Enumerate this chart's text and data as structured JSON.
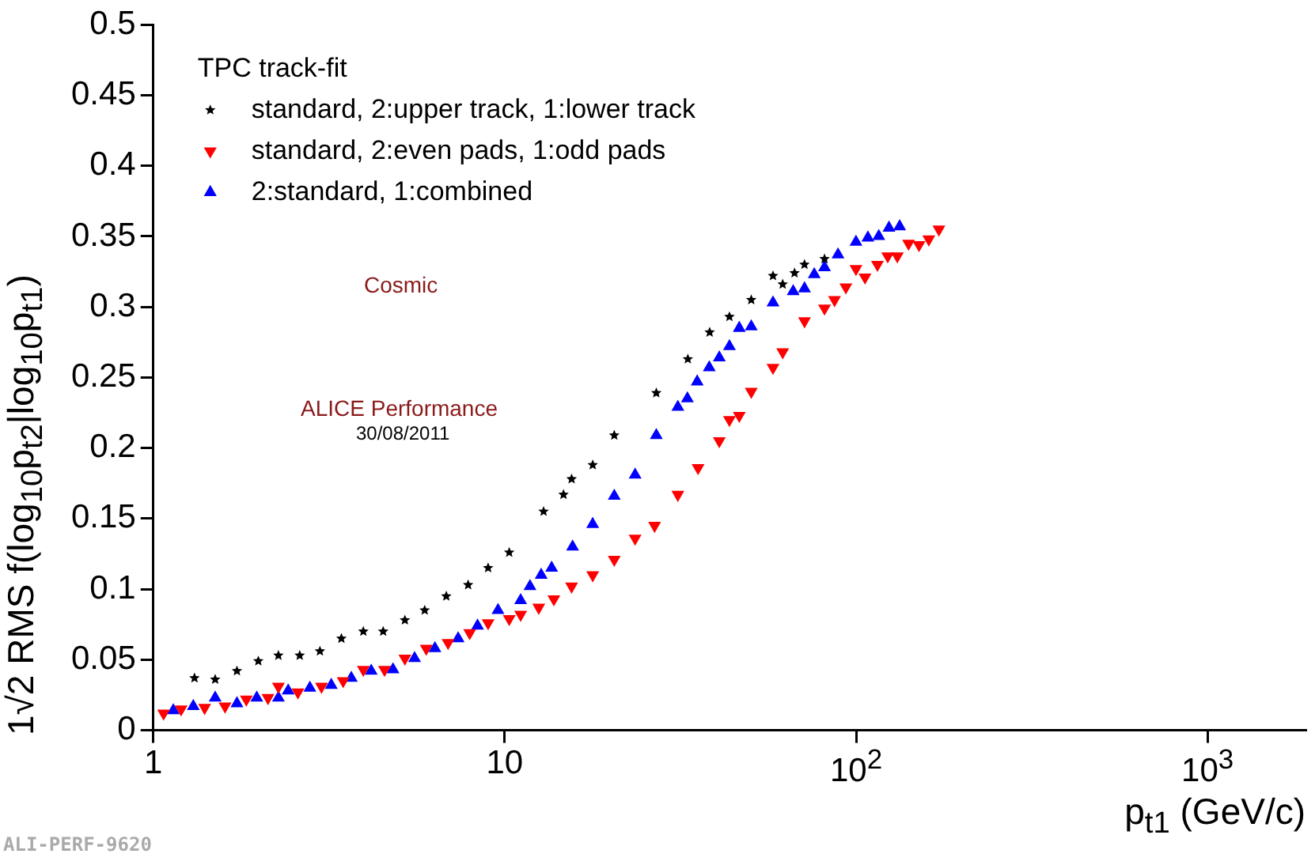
{
  "chart_data": {
    "type": "scatter",
    "xlabel": "p$_{t1}$ (GeV/c)",
    "ylabel": "1√2 RMS f(log$_{10}$p$_{t2}$|log$_{10}$p$_{t1}$)",
    "legend_title": "TPC track-fit",
    "legend": "top left",
    "log": "x",
    "grid": false,
    "xlim": [
      1,
      1900
    ],
    "xticks": [
      1,
      10,
      {
        "value": 100,
        "label": "10$^{2}$"
      },
      {
        "value": 1000,
        "label": "10$^{3}$"
      }
    ],
    "ylim": [
      0,
      0.5
    ],
    "yticks": [
      0,
      0.05,
      0.1,
      0.15,
      0.2,
      0.25,
      0.3,
      0.35,
      0.4,
      0.45,
      0.5
    ],
    "annotations": [
      "Cosmic",
      "ALICE Performance",
      "30/08/2011",
      "ALI-PERF-9620"
    ],
    "series": [
      {
        "name": "standard, 2:upper track, 1:lower track",
        "color": "#000000",
        "marker": "star",
        "x": [
          1.31,
          1.5,
          1.73,
          1.99,
          2.27,
          2.61,
          2.98,
          3.43,
          3.96,
          4.51,
          5.2,
          5.92,
          6.82,
          7.87,
          8.97,
          10.3,
          12.9,
          14.7,
          15.5,
          17.8,
          20.5,
          27,
          33.2,
          38.3,
          43.6,
          50.3,
          58,
          61.8,
          66.8,
          71.3,
          81.3
        ],
        "values": [
          0.037,
          0.036,
          0.042,
          0.049,
          0.053,
          0.053,
          0.056,
          0.065,
          0.07,
          0.07,
          0.078,
          0.085,
          0.095,
          0.103,
          0.115,
          0.126,
          0.155,
          0.167,
          0.178,
          0.188,
          0.209,
          0.239,
          0.263,
          0.282,
          0.293,
          0.305,
          0.322,
          0.316,
          0.324,
          0.33,
          0.334
        ]
      },
      {
        "name": "standard, 2:even pads, 1:odd pads",
        "color": "#ff0000",
        "marker": "triangle-down",
        "x": [
          1.07,
          1.2,
          1.4,
          1.6,
          1.84,
          2.12,
          2.27,
          2.58,
          3.01,
          3.47,
          3.96,
          4.55,
          5.2,
          5.98,
          6.9,
          7.95,
          8.97,
          10.3,
          11.1,
          12.5,
          13.8,
          15.5,
          17.8,
          20.5,
          23.5,
          26.7,
          31.1,
          35.5,
          40.8,
          43.6,
          46.5,
          50.3,
          58,
          61.8,
          71.3,
          81.3,
          86.8,
          93.5,
          99.9,
          106,
          115,
          123,
          131,
          141,
          151,
          161,
          172
        ],
        "values": [
          0.012,
          0.015,
          0.016,
          0.017,
          0.022,
          0.023,
          0.031,
          0.027,
          0.031,
          0.035,
          0.043,
          0.043,
          0.051,
          0.058,
          0.062,
          0.069,
          0.076,
          0.079,
          0.082,
          0.087,
          0.093,
          0.102,
          0.11,
          0.121,
          0.136,
          0.145,
          0.167,
          0.186,
          0.205,
          0.22,
          0.223,
          0.24,
          0.257,
          0.268,
          0.29,
          0.299,
          0.305,
          0.314,
          0.327,
          0.321,
          0.33,
          0.336,
          0.336,
          0.345,
          0.344,
          0.348,
          0.355
        ]
      },
      {
        "name": "2:standard, 1:combined",
        "color": "#0000ff",
        "marker": "triangle",
        "x": [
          1.14,
          1.3,
          1.5,
          1.73,
          1.97,
          2.27,
          2.42,
          2.79,
          3.21,
          3.66,
          4.17,
          4.81,
          5.54,
          6.33,
          7.37,
          8.37,
          9.57,
          11.1,
          11.8,
          12.7,
          13.6,
          15.6,
          17.8,
          20.5,
          23.5,
          27,
          31.1,
          33.1,
          35.3,
          38.2,
          40.8,
          43.6,
          46.5,
          50.3,
          58,
          66.2,
          71.3,
          76,
          81.3,
          88.8,
          99.9,
          108,
          116,
          124,
          133
        ],
        "values": [
          0.014,
          0.017,
          0.023,
          0.019,
          0.023,
          0.023,
          0.028,
          0.03,
          0.032,
          0.037,
          0.042,
          0.043,
          0.051,
          0.058,
          0.065,
          0.074,
          0.085,
          0.092,
          0.102,
          0.11,
          0.115,
          0.13,
          0.146,
          0.166,
          0.181,
          0.209,
          0.229,
          0.235,
          0.247,
          0.257,
          0.264,
          0.272,
          0.285,
          0.286,
          0.303,
          0.311,
          0.313,
          0.323,
          0.328,
          0.337,
          0.346,
          0.349,
          0.35,
          0.356,
          0.357
        ]
      }
    ]
  }
}
